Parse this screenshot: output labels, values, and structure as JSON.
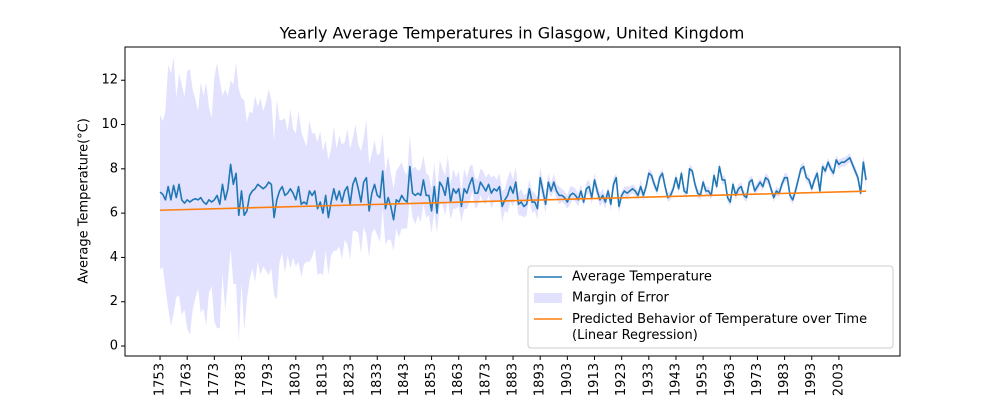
{
  "chart_data": {
    "type": "line",
    "title": "Yearly Average Temperatures in Glasgow, United Kingdom",
    "ylabel": "Average Temperature(°C)",
    "x": [
      1753,
      1754,
      1755,
      1756,
      1757,
      1758,
      1759,
      1760,
      1761,
      1762,
      1763,
      1764,
      1765,
      1766,
      1767,
      1768,
      1769,
      1770,
      1771,
      1772,
      1773,
      1774,
      1775,
      1776,
      1777,
      1778,
      1779,
      1780,
      1781,
      1782,
      1783,
      1784,
      1785,
      1786,
      1787,
      1788,
      1789,
      1790,
      1791,
      1792,
      1793,
      1794,
      1795,
      1796,
      1797,
      1798,
      1799,
      1800,
      1801,
      1802,
      1803,
      1804,
      1805,
      1806,
      1807,
      1808,
      1809,
      1810,
      1811,
      1812,
      1813,
      1814,
      1815,
      1816,
      1817,
      1818,
      1819,
      1820,
      1821,
      1822,
      1823,
      1824,
      1825,
      1826,
      1827,
      1828,
      1829,
      1830,
      1831,
      1832,
      1833,
      1834,
      1835,
      1836,
      1837,
      1838,
      1839,
      1840,
      1841,
      1842,
      1843,
      1844,
      1845,
      1846,
      1847,
      1848,
      1849,
      1850,
      1851,
      1852,
      1853,
      1854,
      1855,
      1856,
      1857,
      1858,
      1859,
      1860,
      1861,
      1862,
      1863,
      1864,
      1865,
      1866,
      1867,
      1868,
      1869,
      1870,
      1871,
      1872,
      1873,
      1874,
      1875,
      1876,
      1877,
      1878,
      1879,
      1880,
      1881,
      1882,
      1883,
      1884,
      1885,
      1886,
      1887,
      1888,
      1889,
      1890,
      1891,
      1892,
      1893,
      1894,
      1895,
      1896,
      1897,
      1898,
      1899,
      1900,
      1901,
      1902,
      1903,
      1904,
      1905,
      1906,
      1907,
      1908,
      1909,
      1910,
      1911,
      1912,
      1913,
      1914,
      1915,
      1916,
      1917,
      1918,
      1919,
      1920,
      1921,
      1922,
      1923,
      1924,
      1925,
      1926,
      1927,
      1928,
      1929,
      1930,
      1931,
      1932,
      1933,
      1934,
      1935,
      1936,
      1937,
      1938,
      1939,
      1940,
      1941,
      1942,
      1943,
      1944,
      1945,
      1946,
      1947,
      1948,
      1949,
      1950,
      1951,
      1952,
      1953,
      1954,
      1955,
      1956,
      1957,
      1958,
      1959,
      1960,
      1961,
      1962,
      1963,
      1964,
      1965,
      1966,
      1967,
      1968,
      1969,
      1970,
      1971,
      1972,
      1973,
      1974,
      1975,
      1976,
      1977,
      1978,
      1979,
      1980,
      1981,
      1982,
      1983,
      1984,
      1985,
      1986,
      1987,
      1988,
      1989,
      1990,
      1991,
      1992,
      1993,
      1994,
      1995,
      1996,
      1997,
      1998,
      1999,
      2000,
      2001,
      2002,
      2003,
      2004,
      2005,
      2006,
      2007,
      2008,
      2009,
      2010,
      2011,
      2012,
      2013
    ],
    "series": [
      {
        "name": "Average Temperature",
        "color": "#1f77b4",
        "values": [
          6.95,
          6.85,
          6.6,
          7.2,
          6.6,
          7.25,
          6.7,
          7.3,
          6.6,
          6.45,
          6.6,
          6.5,
          6.6,
          6.65,
          6.6,
          6.7,
          6.5,
          6.4,
          6.6,
          6.5,
          6.6,
          6.8,
          6.4,
          7.3,
          6.6,
          7.1,
          8.2,
          7.3,
          7.8,
          5.9,
          7.0,
          5.9,
          6.1,
          6.8,
          7.0,
          7.1,
          7.3,
          7.2,
          7.1,
          7.2,
          7.4,
          7.3,
          5.8,
          6.6,
          7.0,
          7.2,
          6.8,
          6.9,
          7.1,
          6.9,
          6.6,
          7.2,
          6.4,
          6.5,
          6.4,
          7.0,
          6.8,
          7.0,
          6.2,
          6.5,
          6.0,
          6.8,
          5.8,
          6.5,
          7.1,
          6.6,
          7.0,
          6.5,
          7.0,
          7.2,
          6.4,
          7.3,
          7.6,
          7.1,
          6.5,
          7.4,
          7.6,
          6.1,
          6.9,
          7.3,
          6.8,
          6.7,
          7.9,
          6.2,
          6.7,
          6.3,
          5.7,
          6.6,
          6.5,
          6.8,
          6.6,
          6.5,
          8.1,
          6.9,
          6.8,
          6.9,
          6.8,
          7.5,
          6.8,
          6.8,
          6.1,
          7.2,
          6.0,
          7.4,
          7.2,
          6.8,
          7.6,
          6.5,
          7.1,
          6.9,
          7.1,
          6.3,
          7.1,
          6.9,
          7.3,
          7.6,
          6.9,
          6.9,
          7.4,
          7.2,
          7.0,
          7.3,
          6.9,
          7.1,
          7.0,
          7.2,
          6.3,
          6.6,
          6.8,
          7.2,
          6.9,
          7.4,
          6.4,
          6.5,
          6.3,
          6.4,
          7.1,
          6.5,
          6.5,
          6.2,
          7.6,
          7.0,
          6.4,
          7.4,
          7.0,
          7.4,
          7.0,
          6.8,
          6.8,
          6.7,
          6.5,
          6.8,
          6.9,
          6.8,
          6.6,
          7.0,
          6.5,
          7.1,
          7.2,
          6.7,
          7.5,
          7.0,
          6.6,
          6.8,
          6.5,
          7.0,
          6.4,
          7.3,
          7.6,
          6.3,
          6.8,
          7.0,
          6.9,
          7.0,
          7.1,
          7.0,
          6.8,
          7.2,
          6.8,
          7.2,
          7.8,
          7.7,
          7.3,
          7.0,
          7.6,
          7.8,
          7.2,
          6.7,
          6.8,
          7.1,
          7.6,
          7.1,
          7.8,
          7.0,
          6.9,
          8.0,
          7.9,
          7.3,
          6.9,
          6.8,
          7.4,
          7.0,
          7.0,
          6.8,
          7.7,
          7.2,
          8.1,
          7.5,
          7.5,
          6.7,
          6.5,
          7.3,
          6.8,
          7.1,
          7.2,
          6.8,
          6.7,
          7.4,
          7.5,
          7.0,
          7.2,
          7.4,
          7.2,
          7.6,
          7.5,
          7.1,
          6.7,
          7.0,
          6.9,
          7.3,
          7.6,
          7.6,
          6.8,
          6.6,
          7.0,
          7.5,
          8.0,
          8.1,
          7.6,
          7.5,
          7.1,
          7.5,
          7.8,
          7.0,
          8.1,
          7.9,
          8.3,
          8.0,
          7.8,
          8.4,
          8.2,
          8.3,
          8.3,
          8.4,
          8.5,
          8.2,
          7.9,
          7.6,
          6.9,
          8.3,
          7.5
        ]
      },
      {
        "name": "Margin of Error",
        "color": "#e2e2ff",
        "errors": [
          3.5,
          3.3,
          4.0,
          5.5,
          5.7,
          5.8,
          4.5,
          5.0,
          5.2,
          4.8,
          5.8,
          6.0,
          5.0,
          4.5,
          4.0,
          5.2,
          4.8,
          5.5,
          4.2,
          3.8,
          5.5,
          6.0,
          5.6,
          4.0,
          5.0,
          4.2,
          3.8,
          4.5,
          5.0,
          5.7,
          4.2,
          5.2,
          4.0,
          3.8,
          3.5,
          4.2,
          3.5,
          4.0,
          3.5,
          3.8,
          4.2,
          3.8,
          3.5,
          4.5,
          3.2,
          3.0,
          3.5,
          2.8,
          3.6,
          2.9,
          3.0,
          3.4,
          3.3,
          2.8,
          2.6,
          3.2,
          2.8,
          2.6,
          3.0,
          3.2,
          2.8,
          2.5,
          2.6,
          2.4,
          2.8,
          2.3,
          2.5,
          2.6,
          2.2,
          2.6,
          2.5,
          2.1,
          2.4,
          2.0,
          2.3,
          2.0,
          2.6,
          2.1,
          1.8,
          2.0,
          1.8,
          2.0,
          1.7,
          1.6,
          1.9,
          1.5,
          1.4,
          1.3,
          1.6,
          1.5,
          1.3,
          1.2,
          1.4,
          1.1,
          1.3,
          1.0,
          1.2,
          1.1,
          1.0,
          0.9,
          1.0,
          1.1,
          0.9,
          1.0,
          0.8,
          0.9,
          1.0,
          0.8,
          0.9,
          0.7,
          0.8,
          0.7,
          0.9,
          0.7,
          0.8,
          0.6,
          0.7,
          0.6,
          0.6,
          0.7,
          0.6,
          0.5,
          0.7,
          0.6,
          0.5,
          0.6,
          0.7,
          0.5,
          0.8,
          0.7,
          0.6,
          0.7,
          0.5,
          0.6,
          0.5,
          0.5,
          0.4,
          0.5,
          0.4,
          0.5,
          0.5,
          0.4,
          0.4,
          0.4,
          0.3,
          0.4,
          0.3,
          0.4,
          0.3,
          0.3,
          0.3,
          0.4,
          0.3,
          0.3,
          0.3,
          0.3,
          0.2,
          0.3,
          0.3,
          0.3,
          0.3,
          0.3,
          0.3,
          0.3,
          0.3,
          0.2,
          0.3,
          0.3,
          0.2,
          0.3,
          0.2,
          0.2,
          0.3,
          0.2,
          0.2,
          0.2,
          0.2,
          0.3,
          0.2,
          0.2,
          0.2,
          0.2,
          0.2,
          0.2,
          0.2,
          0.2,
          0.2,
          0.2,
          0.2,
          0.2,
          0.2,
          0.2,
          0.2,
          0.2,
          0.2,
          0.2,
          0.2,
          0.2,
          0.2,
          0.2,
          0.2,
          0.2,
          0.2,
          0.2,
          0.2,
          0.2,
          0.2,
          0.2,
          0.2,
          0.2,
          0.2,
          0.2,
          0.2,
          0.2,
          0.2,
          0.2,
          0.2,
          0.2,
          0.2,
          0.2,
          0.2,
          0.2,
          0.2,
          0.2,
          0.2,
          0.2,
          0.2,
          0.2,
          0.2,
          0.2,
          0.2,
          0.2,
          0.2,
          0.2,
          0.2,
          0.2,
          0.2,
          0.2,
          0.2,
          0.2,
          0.2,
          0.2,
          0.2,
          0.2,
          0.2,
          0.2,
          0.2,
          0.2,
          0.2,
          0.2,
          0.2,
          0.2,
          0.2,
          0.2,
          0.2,
          0.2,
          0.2,
          0.2,
          0.2,
          0.3,
          0.4
        ]
      },
      {
        "name": "Predicted Behavior of Temperature over Time\n(Linear Regression)",
        "color": "#ff7f0e",
        "x": [
          1753,
          2013
        ],
        "values": [
          6.13,
          6.99
        ]
      }
    ],
    "xlim": [
      1740.1,
      2025.5
    ],
    "ylim": [
      -0.45,
      13.5
    ],
    "xticks": [
      1753,
      1763,
      1773,
      1783,
      1793,
      1803,
      1813,
      1823,
      1833,
      1843,
      1853,
      1863,
      1873,
      1883,
      1893,
      1903,
      1913,
      1923,
      1933,
      1943,
      1953,
      1963,
      1973,
      1983,
      1993,
      2003
    ],
    "yticks": [
      0,
      2,
      4,
      6,
      8,
      10,
      12
    ],
    "legend": "lower right"
  }
}
